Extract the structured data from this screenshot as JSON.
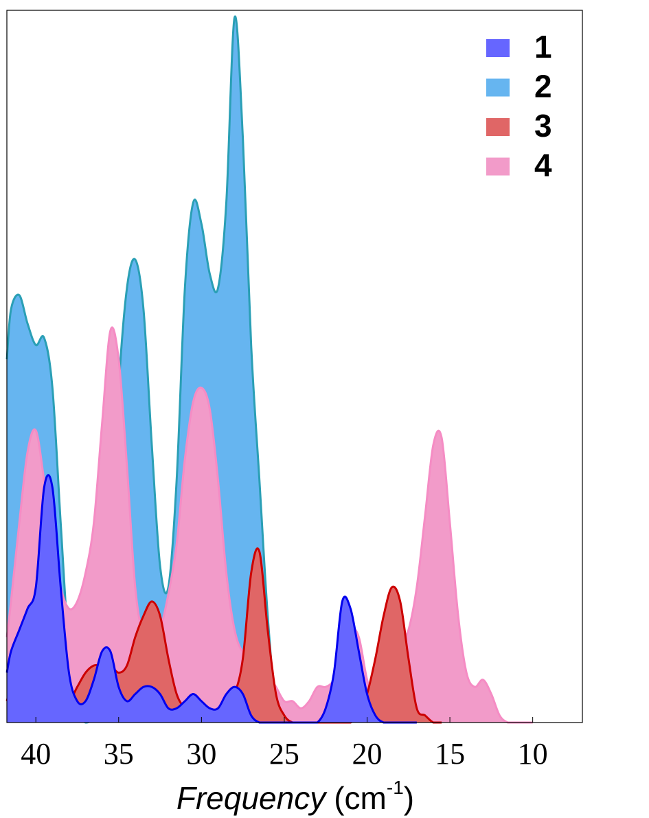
{
  "chart_data": {
    "type": "area",
    "x_label": {
      "name": "Frequency",
      "unit": "(cm",
      "unit_exp": "-1",
      "unit_close": ")"
    },
    "x": [
      41.75,
      41.5,
      41,
      40.5,
      40,
      39.5,
      39,
      38.5,
      38,
      37.5,
      37,
      36.5,
      36,
      35.5,
      35,
      34.5,
      34,
      33.5,
      33,
      32.5,
      32,
      31.5,
      31,
      30.5,
      30,
      29.5,
      29,
      28.5,
      28,
      27.5,
      27,
      26.5,
      26,
      25.5,
      25,
      24.5,
      24,
      23.5,
      23,
      22.5,
      22,
      21.5,
      21,
      20.5,
      20,
      19.5,
      19,
      18.5,
      18,
      17.5,
      17,
      16.5,
      16,
      15.5,
      15,
      14.5,
      14,
      13.5,
      13,
      12.5,
      12,
      11.5,
      11,
      10.5,
      10
    ],
    "series": [
      {
        "name": "1",
        "color": "#6666ff",
        "line_color": "#0000ee",
        "values": [
          0.07,
          0.1,
          0.13,
          0.16,
          0.19,
          0.33,
          0.33,
          0.19,
          0.07,
          0.03,
          0.03,
          0.06,
          0.1,
          0.1,
          0.05,
          0.03,
          0.04,
          0.05,
          0.05,
          0.04,
          0.02,
          0.02,
          0.03,
          0.04,
          0.03,
          0.02,
          0.02,
          0.04,
          0.05,
          0.04,
          0.01,
          0,
          0,
          0,
          0,
          0,
          0,
          0,
          0,
          0.02,
          0.07,
          0.17,
          0.16,
          0.1,
          0.04,
          0.01,
          0,
          0,
          0,
          0,
          0,
          null,
          null,
          null,
          null,
          null,
          null,
          null,
          null,
          null,
          null,
          null,
          null,
          null,
          null
        ]
      },
      {
        "name": "2",
        "color": "#66b5f0",
        "line_color": "#2a9fb5",
        "values": [
          0.51,
          0.58,
          0.6,
          0.56,
          0.53,
          0.54,
          0.47,
          0.28,
          0.1,
          0.02,
          0,
          0.01,
          0.07,
          0.24,
          0.47,
          0.61,
          0.65,
          0.58,
          0.39,
          0.22,
          0.19,
          0.34,
          0.61,
          0.73,
          0.7,
          0.63,
          0.61,
          0.73,
          0.99,
          0.82,
          0.53,
          0.34,
          0.15,
          0.02,
          0,
          null,
          null,
          null,
          null,
          null,
          null,
          null,
          null,
          null,
          null,
          null,
          null,
          null,
          null,
          null,
          null,
          null,
          null,
          null,
          null,
          null,
          null,
          null,
          null,
          null,
          null,
          null,
          null,
          null,
          null
        ]
      },
      {
        "name": "3",
        "color": "#e06666",
        "line_color": "#cc0000",
        "values": [
          0.03,
          0.05,
          0.05,
          0.05,
          0.06,
          0.06,
          0.05,
          0.04,
          0.03,
          0.05,
          0.07,
          0.08,
          0.08,
          0.08,
          0.07,
          0.08,
          0.12,
          0.15,
          0.17,
          0.15,
          0.09,
          0.04,
          0.02,
          0.01,
          0.01,
          0.01,
          0.02,
          0.02,
          0.04,
          0.09,
          0.21,
          0.24,
          0.13,
          0.04,
          0.01,
          0,
          0,
          0,
          0,
          0,
          0,
          0,
          0,
          0.01,
          0.04,
          0.09,
          0.15,
          0.19,
          0.17,
          0.09,
          0.02,
          0.01,
          0,
          0,
          null,
          null,
          null,
          null,
          null,
          null,
          null,
          null,
          null,
          null,
          null
        ]
      },
      {
        "name": "4",
        "color": "#f29bc9",
        "line_color": "#f58cc4",
        "values": [
          0.12,
          0.17,
          0.28,
          0.38,
          0.41,
          0.34,
          0.26,
          0.19,
          0.16,
          0.17,
          0.21,
          0.28,
          0.42,
          0.55,
          0.51,
          0.36,
          0.19,
          0.12,
          0.11,
          0.13,
          0.18,
          0.25,
          0.37,
          0.45,
          0.47,
          0.44,
          0.34,
          0.21,
          0.13,
          0.1,
          0.11,
          0.1,
          0.07,
          0.05,
          0.03,
          0.03,
          0.02,
          0.03,
          0.05,
          0.05,
          0.06,
          0.09,
          0.13,
          0.12,
          0.06,
          0.03,
          0.04,
          0.07,
          0.11,
          0.13,
          0.19,
          0.29,
          0.39,
          0.4,
          0.28,
          0.15,
          0.07,
          0.05,
          0.06,
          0.04,
          0.01,
          0,
          0,
          0,
          0
        ]
      }
    ],
    "xlim": [
      41.75,
      7
    ],
    "xticks": [
      40,
      35,
      30,
      25,
      20,
      15,
      10
    ],
    "ylim": [
      0,
      1
    ],
    "legend": "upper right"
  }
}
